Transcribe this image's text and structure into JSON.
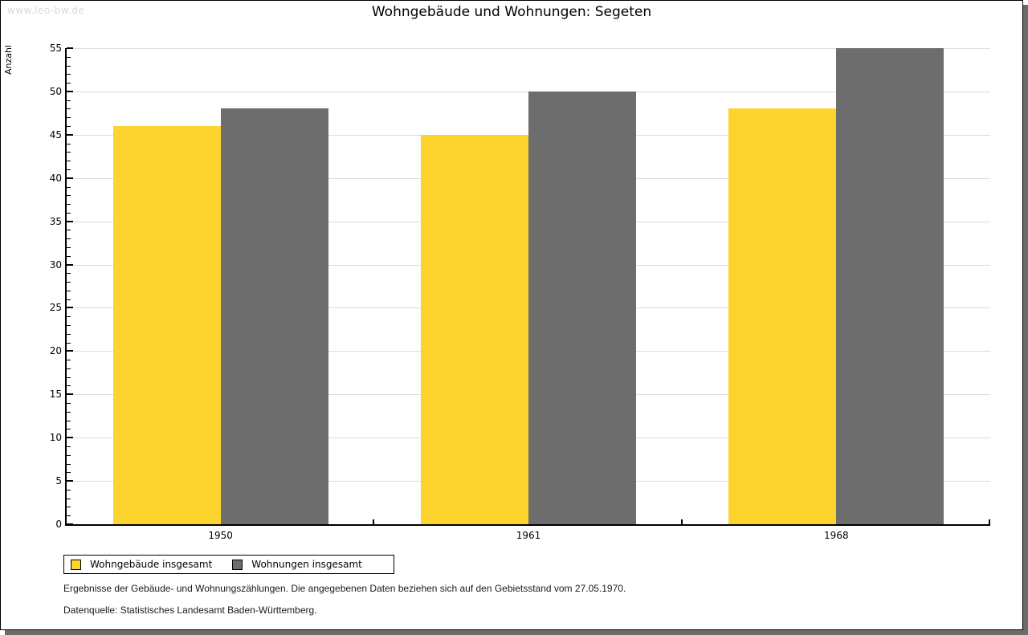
{
  "watermark": "www.leo-bw.de",
  "chart_data": {
    "type": "bar",
    "title": "Wohngebäude und Wohnungen: Segeten",
    "ylabel": "Anzahl",
    "xlabel": "",
    "categories": [
      "1950",
      "1961",
      "1968"
    ],
    "series": [
      {
        "name": "Wohngebäude insgesamt",
        "color": "#fcd42d",
        "values": [
          46,
          45,
          48
        ]
      },
      {
        "name": "Wohnungen insgesamt",
        "color": "#6d6d6d",
        "values": [
          48,
          50,
          55
        ]
      }
    ],
    "ylim": [
      0,
      55
    ],
    "y_major_step": 5,
    "y_minor_step": 1,
    "grid": true,
    "legend_position": "bottom-left"
  },
  "footnotes": [
    "Ergebnisse der Gebäude- und Wohnungszählungen. Die angegebenen Daten beziehen sich auf den Gebietsstand vom 27.05.1970.",
    "Datenquelle: Statistisches Landesamt Baden-Württemberg."
  ],
  "colors": {
    "bar_yellow": "#fcd42d",
    "bar_gray": "#6d6d6d",
    "gridline": "#dcdcdc",
    "axis": "#000000",
    "watermark": "#d9d9d9",
    "shadow": "#6b6b6b"
  }
}
